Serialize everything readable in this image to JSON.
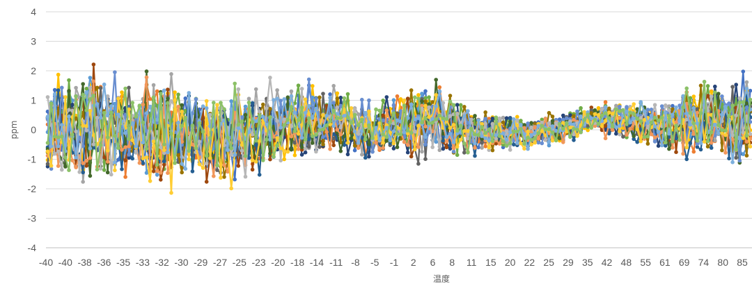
{
  "chart_data": {
    "type": "line",
    "xlabel": "温度",
    "ylabel": "ppm",
    "ylim": [
      -4,
      4
    ],
    "y_ticks": [
      4,
      3,
      2,
      1,
      0,
      -1,
      -2,
      -3,
      -4
    ],
    "x_tick_labels": [
      "-40",
      "-40",
      "-38",
      "-36",
      "-35",
      "-33",
      "-32",
      "-30",
      "-29",
      "-27",
      "-25",
      "-23",
      "-20",
      "-18",
      "-14",
      "-11",
      "-8",
      "-5",
      "-1",
      "2",
      "6",
      "8",
      "11",
      "15",
      "20",
      "22",
      "25",
      "29",
      "35",
      "42",
      "48",
      "55",
      "61",
      "69",
      "74",
      "80",
      "85"
    ],
    "x_categories_count": 200,
    "markers": true,
    "grid": "horizontal",
    "series_colors": [
      "#4472C4",
      "#ED7D31",
      "#A5A5A5",
      "#FFC000",
      "#5B9BD5",
      "#70AD47",
      "#264478",
      "#9E480E",
      "#636363",
      "#997300",
      "#255E91",
      "#43682B",
      "#698ED0",
      "#F1975A",
      "#B7B7B7",
      "#FFCD33",
      "#7CAFDD",
      "#8CC168"
    ],
    "series_count": 18,
    "envelope": [
      {
        "x": "-40",
        "ymin": -2.2,
        "ymax": 2.1
      },
      {
        "x": "-38",
        "ymin": -2.7,
        "ymax": 2.7
      },
      {
        "x": "-35",
        "ymin": -2.4,
        "ymax": 2.3
      },
      {
        "x": "-32",
        "ymin": -2.6,
        "ymax": 2.4
      },
      {
        "x": "-29",
        "ymin": -2.1,
        "ymax": 1.5
      },
      {
        "x": "-25",
        "ymin": -2.4,
        "ymax": 2.0
      },
      {
        "x": "-20",
        "ymin": -1.8,
        "ymax": 2.1
      },
      {
        "x": "-14",
        "ymin": -1.4,
        "ymax": 1.8
      },
      {
        "x": "-8",
        "ymin": -1.2,
        "ymax": 1.4
      },
      {
        "x": "-1",
        "ymin": -1.3,
        "ymax": 1.4
      },
      {
        "x": "6",
        "ymin": -1.5,
        "ymax": 2.0
      },
      {
        "x": "11",
        "ymin": -1.0,
        "ymax": 0.8
      },
      {
        "x": "20",
        "ymin": -1.0,
        "ymax": 0.7
      },
      {
        "x": "29",
        "ymin": -0.7,
        "ymax": 0.6
      },
      {
        "x": "42",
        "ymin": -0.2,
        "ymax": 1.0
      },
      {
        "x": "55",
        "ymin": -0.6,
        "ymax": 1.1
      },
      {
        "x": "69",
        "ymin": -1.1,
        "ymax": 1.4
      },
      {
        "x": "80",
        "ymin": -1.1,
        "ymax": 1.9
      },
      {
        "x": "85",
        "ymin": -1.8,
        "ymax": 2.2
      }
    ]
  }
}
